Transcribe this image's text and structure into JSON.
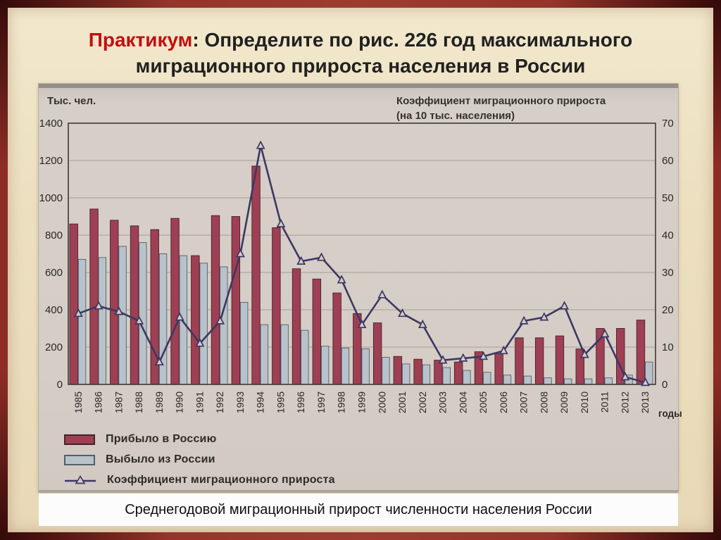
{
  "slide": {
    "title_accent": "Практикум",
    "title_rest_line1": ": Определите по рис. 226 год максимального",
    "title_line2": "миграционного прироста населения в России",
    "caption": "Среднегодовой миграционный прирост численности населения России"
  },
  "chart_data": {
    "type": "bar+line",
    "left_axis_title": "Тыс. чел.",
    "right_axis_title_line1": "Коэффициент миграционного прироста",
    "right_axis_title_line2": "(на 10 тыс. населения)",
    "x_axis_label": "годы",
    "left_ylim": [
      0,
      1400
    ],
    "right_ylim": [
      0,
      70
    ],
    "left_ticks": [
      0,
      200,
      400,
      600,
      800,
      1000,
      1200,
      1400
    ],
    "right_ticks": [
      0,
      10,
      20,
      30,
      40,
      50,
      60,
      70
    ],
    "grid": "horizontal",
    "legend_position": "bottom-left",
    "categories": [
      "1985",
      "1986",
      "1987",
      "1988",
      "1989",
      "1990",
      "1991",
      "1992",
      "1993",
      "1994",
      "1995",
      "1996",
      "1997",
      "1998",
      "1999",
      "2000",
      "2001",
      "2002",
      "2003",
      "2004",
      "2005",
      "2006",
      "2007",
      "2008",
      "2009",
      "2010",
      "2011",
      "2012",
      "2013"
    ],
    "series": [
      {
        "name": "Прибыло в Россию",
        "type": "bar",
        "axis": "left",
        "color": "#9e3f53",
        "values": [
          860,
          940,
          880,
          850,
          830,
          890,
          690,
          905,
          900,
          1170,
          840,
          620,
          565,
          490,
          380,
          330,
          150,
          135,
          130,
          120,
          175,
          165,
          250,
          250,
          260,
          190,
          300,
          300,
          345
        ]
      },
      {
        "name": "Выбыло из России",
        "type": "bar",
        "axis": "left",
        "color": "#b7c2ca",
        "values": [
          670,
          680,
          740,
          760,
          700,
          690,
          650,
          630,
          440,
          320,
          320,
          290,
          205,
          195,
          190,
          145,
          110,
          105,
          90,
          75,
          65,
          50,
          45,
          35,
          30,
          30,
          35,
          50,
          120
        ]
      },
      {
        "name": "Коэффициент миграционного прироста",
        "type": "line",
        "axis": "right",
        "color": "#3c3764",
        "values": [
          19,
          21,
          19.5,
          17,
          6,
          18,
          11,
          17,
          35,
          64,
          43,
          33,
          34,
          28,
          16,
          24,
          19,
          16,
          6.5,
          7,
          7.5,
          9,
          17,
          18,
          21,
          8,
          13.5,
          2,
          0.5
        ]
      }
    ]
  }
}
